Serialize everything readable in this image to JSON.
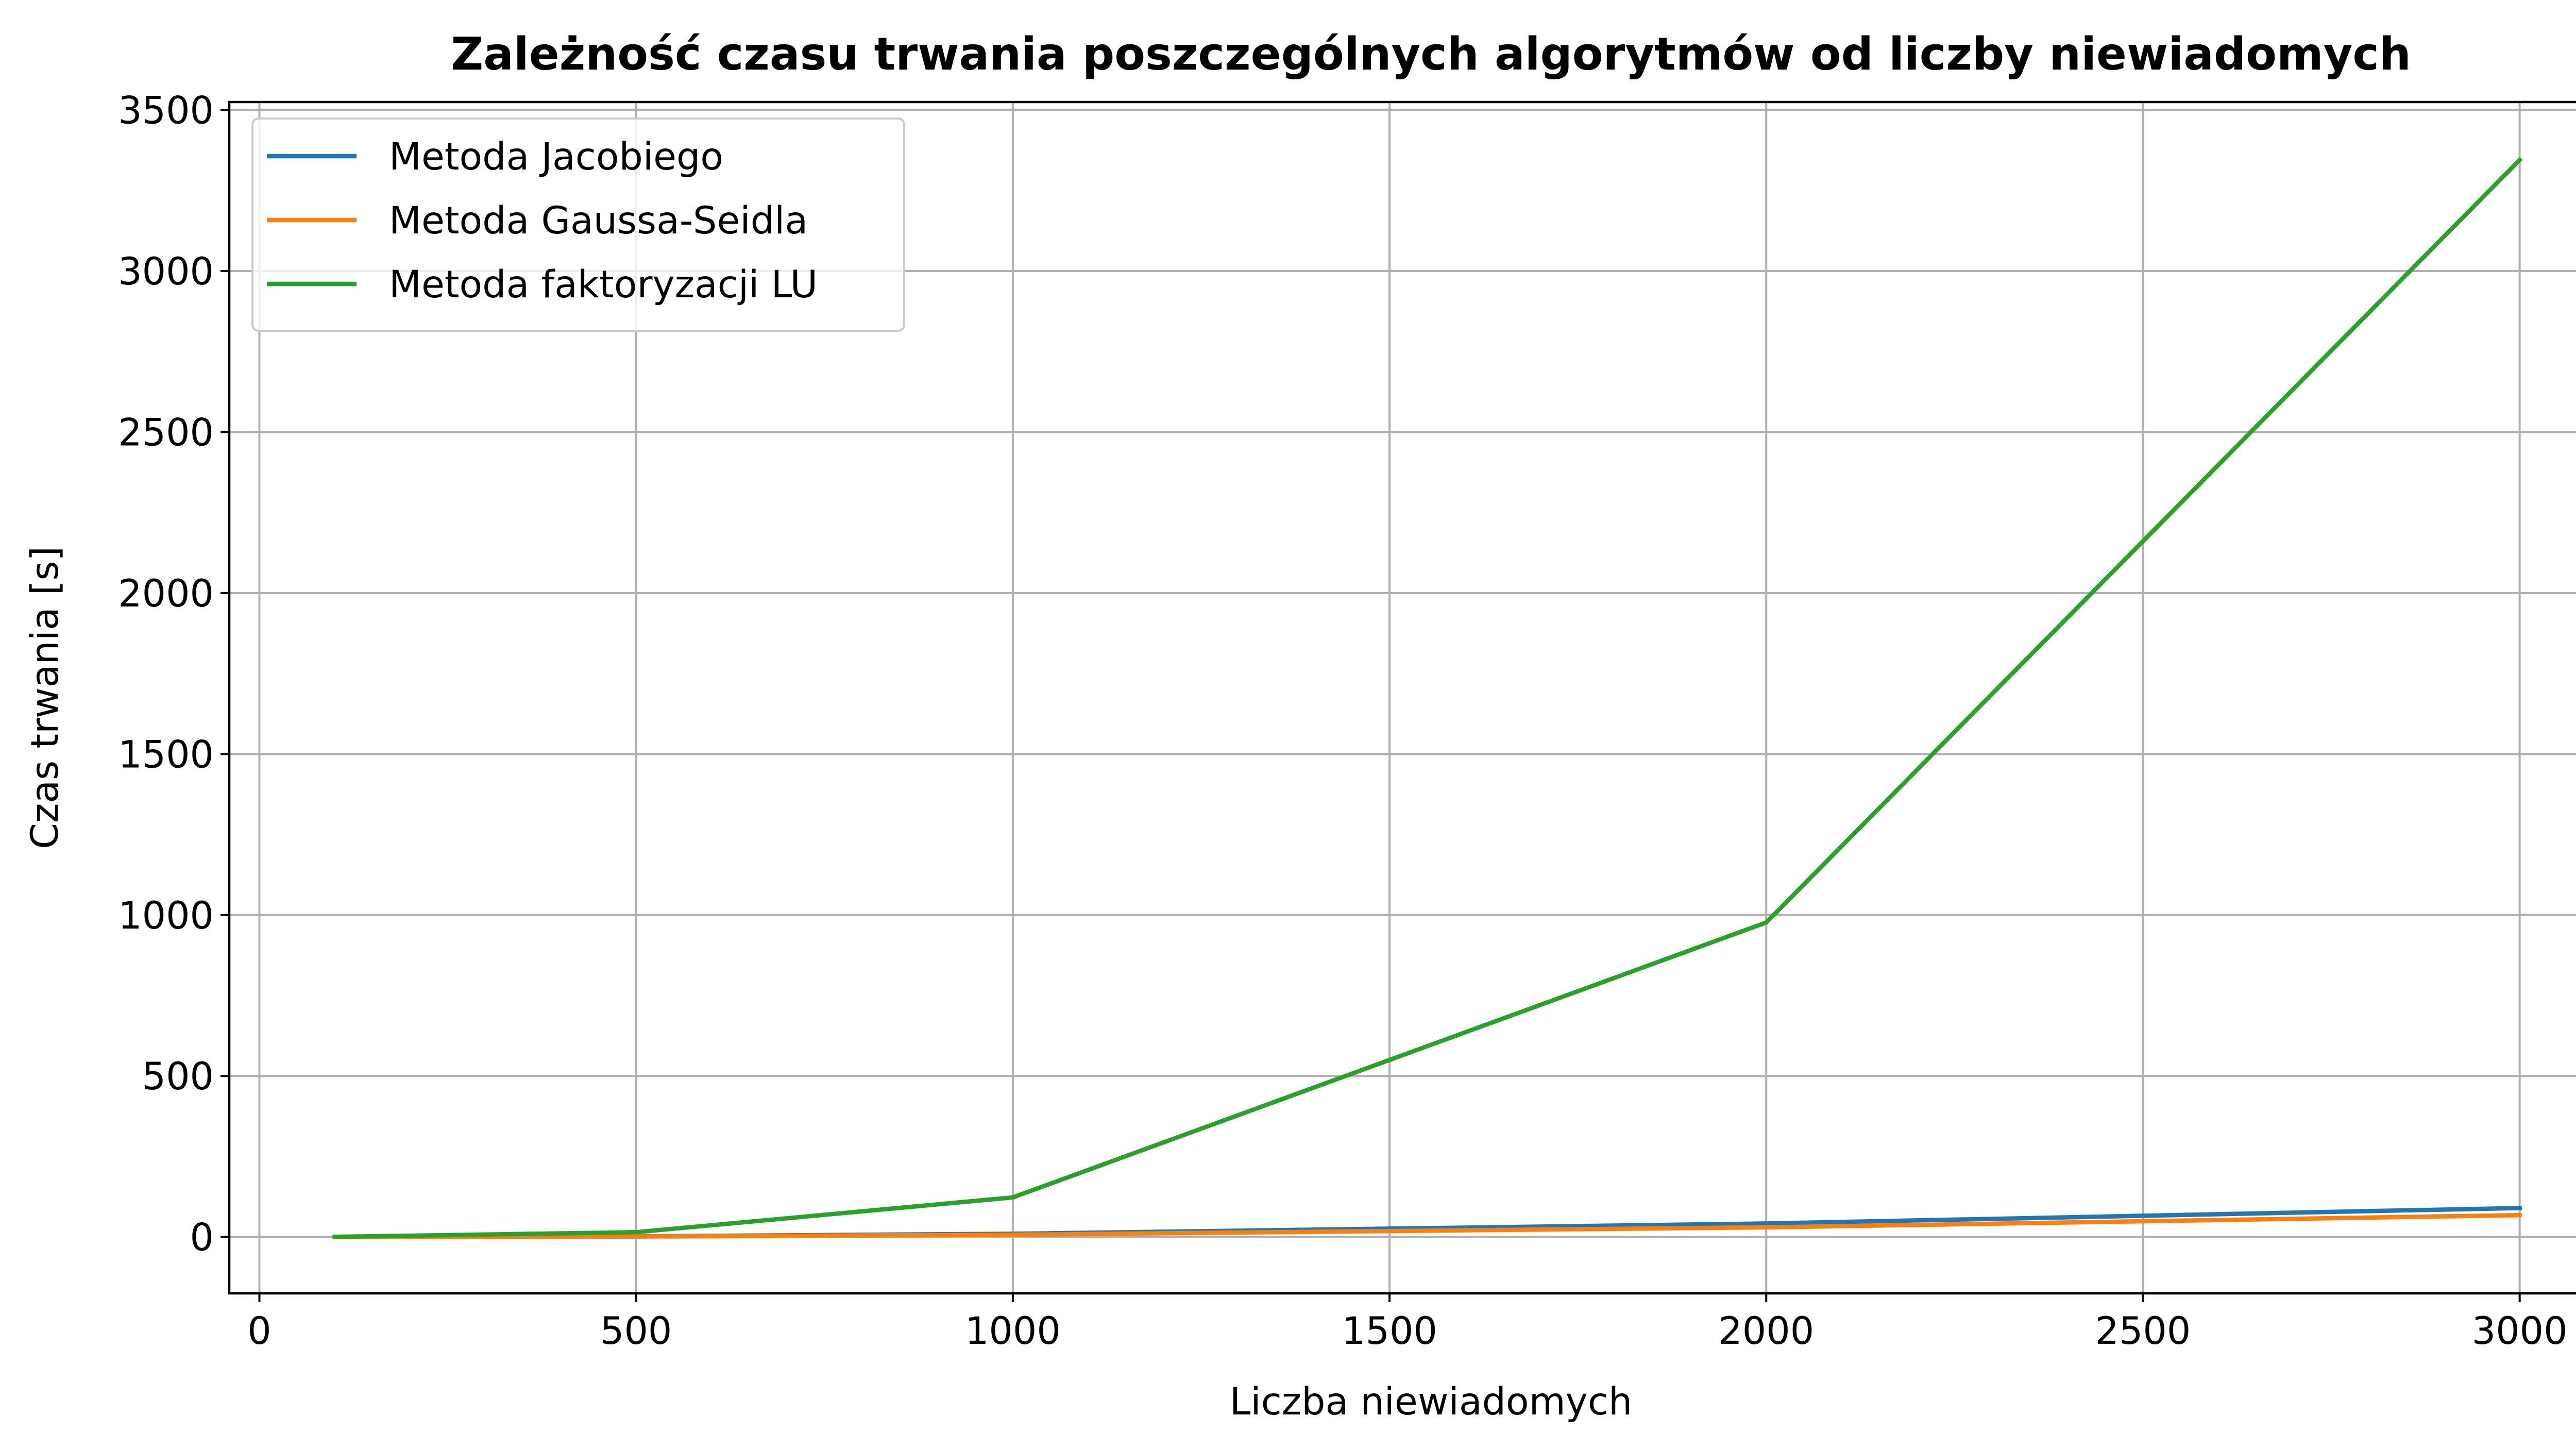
{
  "chart_data": {
    "type": "line",
    "title": "Zależność czasu trwania poszczególnych algorytmów od liczby niewiadomych",
    "xlabel": "Liczba niewiadomych",
    "ylabel": "Czas trwania [s]",
    "xlim": [
      -40,
      3150
    ],
    "ylim": [
      -175,
      3525
    ],
    "xticks": [
      0,
      500,
      1000,
      1500,
      2000,
      2500,
      3000
    ],
    "yticks": [
      0,
      500,
      1000,
      1500,
      2000,
      2500,
      3000,
      3500
    ],
    "grid": true,
    "legend_position": "top-left",
    "x": [
      100,
      500,
      1000,
      2000,
      3000
    ],
    "series": [
      {
        "name": "Metoda Jacobiego",
        "color": "#1f77b4",
        "values": [
          0.2,
          2,
          10,
          42,
          90
        ]
      },
      {
        "name": "Metoda Gaussa-Seidla",
        "color": "#ff7f0e",
        "values": [
          0.1,
          1.5,
          7,
          30,
          68
        ]
      },
      {
        "name": "Metoda faktoryzacji LU",
        "color": "#2ca02c",
        "values": [
          0.5,
          15,
          123,
          977,
          3345
        ]
      }
    ]
  }
}
